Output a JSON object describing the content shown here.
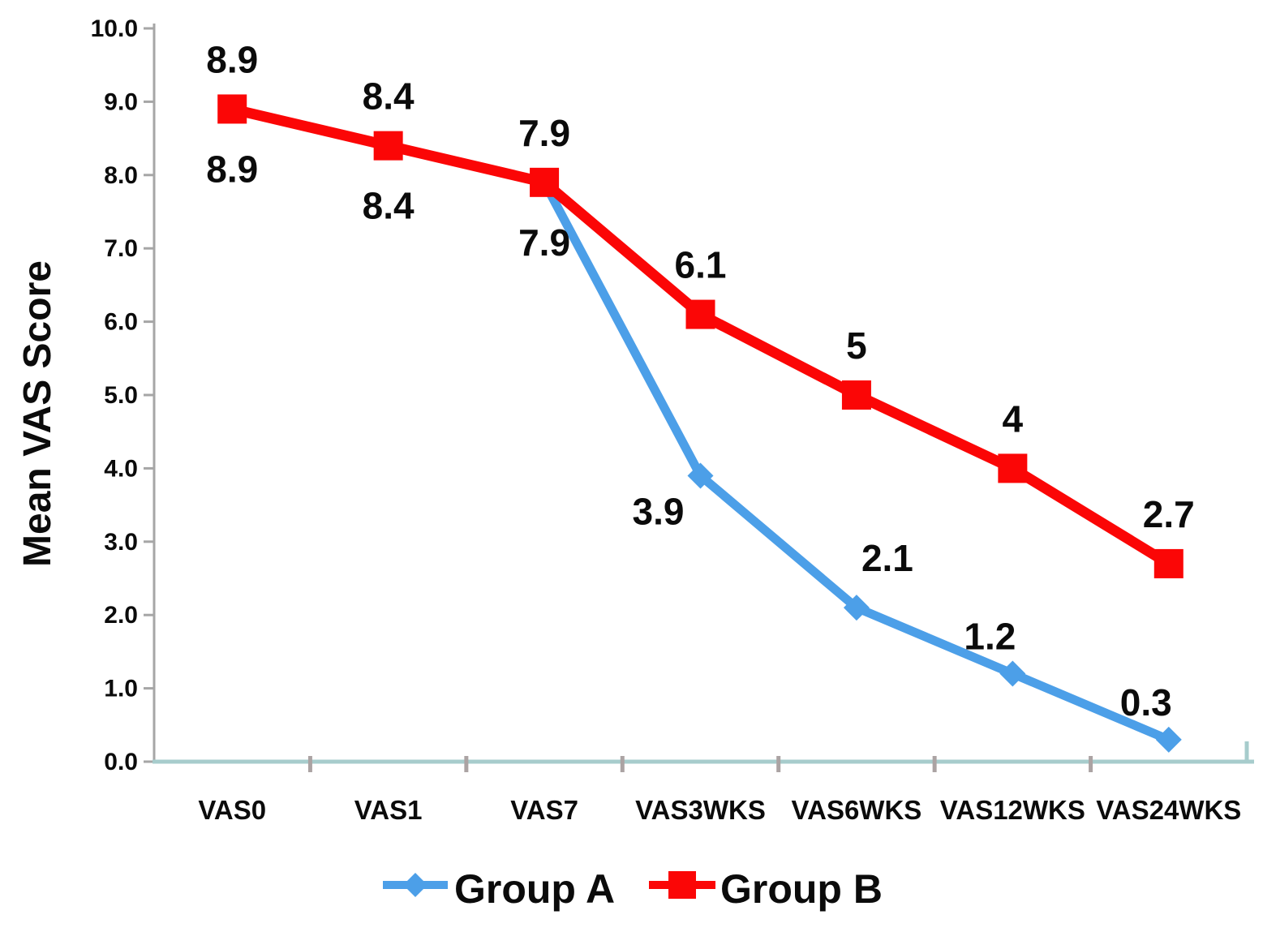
{
  "chart_data": {
    "type": "line",
    "title": "",
    "xlabel": "",
    "ylabel": "Mean VAS Score",
    "categories": [
      "VAS0",
      "VAS1",
      "VAS7",
      "VAS3WKS",
      "VAS6WKS",
      "VAS12WKS",
      "VAS24WKS"
    ],
    "series": [
      {
        "name": "Group A",
        "color": "#4C9FE8",
        "marker": "diamond",
        "values": [
          8.9,
          8.4,
          7.9,
          3.9,
          2.1,
          1.2,
          0.3
        ],
        "labels": [
          "8.9",
          "8.4",
          "7.9",
          "3.9",
          "2.1",
          "1.2",
          "0.3"
        ],
        "label_positions": [
          "below",
          "below",
          "below",
          "below-left",
          "above-right",
          "above-left",
          "above-left"
        ]
      },
      {
        "name": "Group B",
        "color": "#FB0606",
        "marker": "square",
        "values": [
          8.9,
          8.4,
          7.9,
          6.1,
          5,
          4,
          2.7
        ],
        "labels": [
          "8.9",
          "8.4",
          "7.9",
          "6.1",
          "5",
          "4",
          "2.7"
        ],
        "label_positions": [
          "above",
          "above",
          "above",
          "above",
          "above",
          "above",
          "above"
        ]
      }
    ],
    "ylim": [
      0,
      10
    ],
    "ytick_step": 1,
    "ytick_labels": [
      "0.0",
      "1.0",
      "2.0",
      "3.0",
      "4.0",
      "5.0",
      "6.0",
      "7.0",
      "8.0",
      "9.0",
      "10.0"
    ],
    "grid": false,
    "legend_position": "bottom",
    "axis_colors": {
      "y_axis_line": "#A6A6A6",
      "x_axis_line": "#A7CCCC",
      "y_tick": "#A6A6A6",
      "x_boundary_tick": "#ABA3A3",
      "text": "#0B0B0B"
    }
  }
}
